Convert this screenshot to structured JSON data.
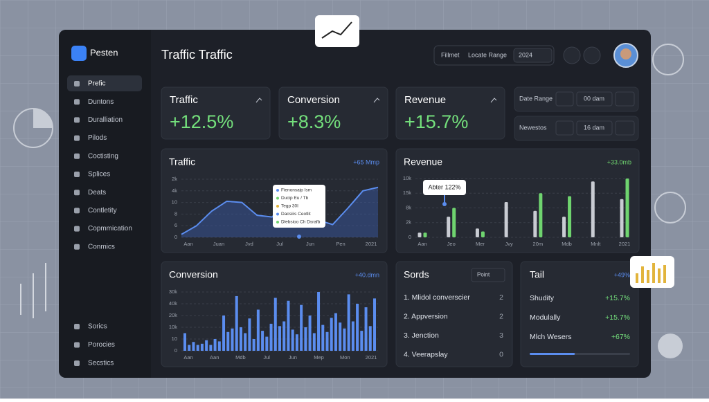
{
  "sidebar": {
    "brand": "Pesten",
    "items": [
      "Prefic",
      "Duntons",
      "Duralliation",
      "Pilods",
      "Coctisting",
      "Splices",
      "Deats",
      "Contletity",
      "Copmmication",
      "Conmics"
    ],
    "footer": [
      "Sorics",
      "Porocies",
      "Secstics"
    ]
  },
  "header": {
    "title": "Traffic Traffic",
    "filter_label": "Fillmet",
    "range_label": "Locate Range",
    "year": "2024"
  },
  "kpis": [
    {
      "label": "Traffic",
      "value": "+12.5%"
    },
    {
      "label": "Conversion",
      "value": "+8.3%"
    },
    {
      "label": "Revenue",
      "value": "+15.7%"
    }
  ],
  "filters": [
    {
      "label": "Date Range",
      "value": "00 dam"
    },
    {
      "label": "Newestos",
      "value": "16 dam"
    }
  ],
  "traffic_chart": {
    "title": "Traffic",
    "badge": "+65 Mmp",
    "y_labels": [
      "2k",
      "4k",
      "10",
      "8",
      "6",
      "0"
    ],
    "x_labels": [
      "Aan",
      "Juan",
      "Jvd",
      "Jul",
      "Jun",
      "Pen",
      "2021"
    ],
    "ylim": [
      0,
      10
    ],
    "values": [
      0.5,
      2,
      4.5,
      6.2,
      6,
      3.8,
      3.5,
      6.5,
      6.8,
      3,
      2.2,
      5,
      8,
      8.6
    ],
    "tooltip": [
      "Fienonsaip Ism",
      "Ducip Eu / Tb",
      "Tegp 30I",
      "Dacsiiis Ceotlit",
      "Dlebsioo Ch Dsrafb"
    ]
  },
  "revenue_chart": {
    "title": "Revenue",
    "badge": "+33.0mb",
    "tooltip": "Abter 122%",
    "y_labels": [
      "10k",
      "15k",
      "8k",
      "2k",
      "0"
    ],
    "x_labels": [
      "Aan",
      "Jeo",
      "Mer",
      "Jvy",
      "20m",
      "Mdb",
      "Mnlt",
      "2021"
    ],
    "ylim": [
      0,
      10
    ],
    "series": [
      {
        "color": "#c9ccd3",
        "values": [
          0.8,
          3.5,
          1.5,
          6,
          4.5,
          3.5,
          9.5,
          6.5
        ]
      },
      {
        "color": "#6fd46f",
        "values": [
          0.8,
          5,
          1,
          null,
          7.5,
          7,
          null,
          10
        ]
      }
    ]
  },
  "conversion_chart": {
    "title": "Conversion",
    "badge": "+40.dmn",
    "y_labels": [
      "30k",
      "40k",
      "20k",
      "10k",
      "10",
      "0"
    ],
    "x_labels": [
      "Aan",
      "Aan",
      "Mdb",
      "Jul",
      "Jun",
      "Mep",
      "Mon",
      "2021"
    ],
    "ylim": [
      0,
      10
    ],
    "color": "#5b8def",
    "values": [
      3,
      1,
      1.5,
      1,
      1.2,
      1.8,
      1,
      2,
      1.6,
      6,
      3.2,
      3.8,
      9.3,
      4,
      3,
      5.5,
      2,
      7,
      3.4,
      2.4,
      4.6,
      9,
      4.2,
      5,
      8.5,
      3.6,
      2.8,
      7.8,
      4,
      6,
      3,
      10,
      4.4,
      3.2,
      5.6,
      6.4,
      4.8,
      3.8,
      9.6,
      5,
      8,
      3.4,
      7.4,
      4.2,
      8.9
    ]
  },
  "sords": {
    "title": "Sords",
    "dropdown": "Point",
    "rows": [
      [
        "1. Mlidol converscier",
        "2"
      ],
      [
        "2. Appversion",
        "2"
      ],
      [
        "3. Jenction",
        "3"
      ],
      [
        "4. Veerapslay",
        "0"
      ]
    ]
  },
  "tail": {
    "title": "Tail",
    "badge": "+49%",
    "rows": [
      [
        "Shudity",
        "+15.7%"
      ],
      [
        "Modulally",
        "+15.7%"
      ],
      [
        "Mlch Wesers",
        "+67%"
      ]
    ],
    "progress": 45,
    "progress_lim": [
      0,
      100
    ]
  }
}
